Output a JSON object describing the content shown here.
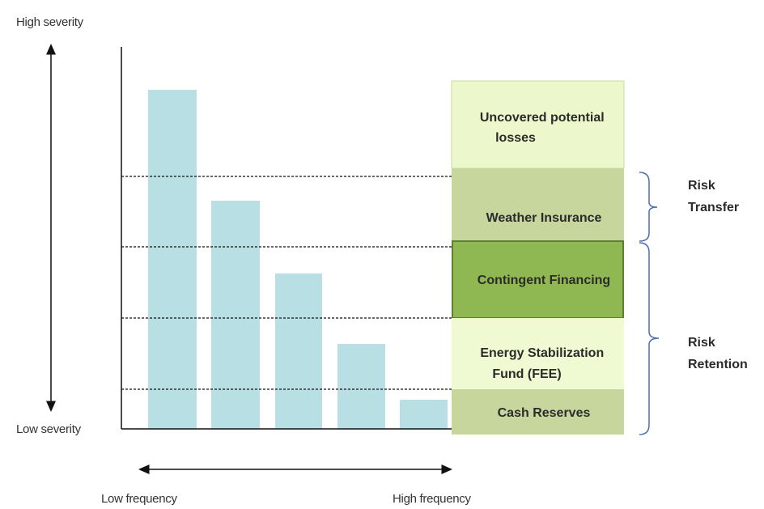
{
  "axes": {
    "y_top": "High severity",
    "y_bottom": "Low severity",
    "x_left": "Low frequency",
    "x_right": "High frequency"
  },
  "layers": [
    {
      "lines": [
        "Uncovered potential",
        "losses"
      ]
    },
    {
      "lines": [
        "Weather Insurance"
      ]
    },
    {
      "lines": [
        "Contingent Financing"
      ]
    },
    {
      "lines": [
        "Energy Stabilization",
        "Fund (FEE)"
      ]
    },
    {
      "lines": [
        "Cash Reserves"
      ]
    }
  ],
  "groups": [
    {
      "lines": [
        "Risk",
        "Transfer"
      ]
    },
    {
      "lines": [
        "Risk",
        "Retention"
      ]
    }
  ]
}
